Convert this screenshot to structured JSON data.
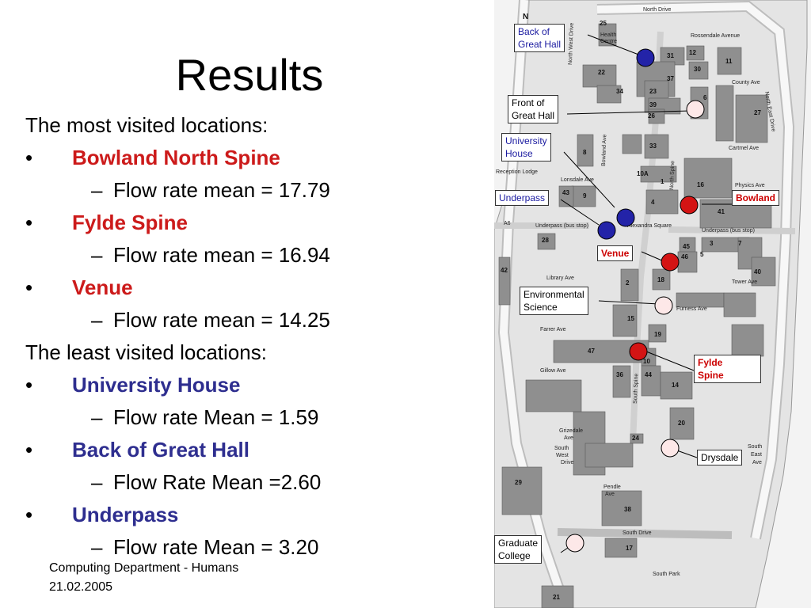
{
  "slide": {
    "title": "Results",
    "most_heading": "The most visited locations:",
    "least_heading": "The least visited locations:",
    "bullet": "•",
    "dash": "–",
    "most": [
      {
        "name": "Bowland North Spine",
        "stat": "Flow rate mean = 17.79"
      },
      {
        "name": "Fylde Spine",
        "stat": "Flow rate mean = 16.94"
      },
      {
        "name": "Venue",
        "stat": "Flow rate mean = 14.25"
      }
    ],
    "least": [
      {
        "name": "University House",
        "stat": "Flow rate Mean = 1.59"
      },
      {
        "name": "Back of Great Hall",
        "stat": "Flow Rate Mean =2.60"
      },
      {
        "name": "Underpass",
        "stat": "Flow rate Mean = 3.20"
      }
    ],
    "footer_line1": "Computing Department - Humans",
    "footer_line2": "21.02.2005"
  },
  "colors": {
    "most_text": "#cc1a1a",
    "least_text": "#2e2e8f",
    "marker_high": "#d41414",
    "marker_low": "#2323a8",
    "marker_other": "#fde8e8"
  },
  "map": {
    "north": "N",
    "callouts": {
      "back_great_hall_1": "Back of",
      "back_great_hall_2": "Great Hall",
      "front_great_hall_1": "Front of",
      "front_great_hall_2": "Great Hall",
      "university_house_1": "University",
      "university_house_2": "House",
      "underpass": "Underpass",
      "bowland": "Bowland",
      "venue": "Venue",
      "env_science_1": "Environmental",
      "env_science_2": "Science",
      "fylde_1": "Fylde",
      "fylde_2": "Spine",
      "drysdale": "Drysdale",
      "graduate_1": "Graduate",
      "graduate_2": "College"
    },
    "streets": {
      "north_drive": "North Drive",
      "rossendale": "Rossendale Avenue",
      "county": "County Ave",
      "north_east": "North East Drive",
      "north_west": "North West Drive",
      "cartmel": "Cartmel Ave",
      "physics": "Physics Ave",
      "reception": "Reception Lodge",
      "lonsdale": "Lonsdale Ave",
      "bowland_ave": "Bowland Ave",
      "north_spine": "North Spine",
      "alexandra": "Alexandra Square",
      "underpass_left": "Underpass (bus stop)",
      "underpass_right": "Underpass (bus stop)",
      "a6": "A6",
      "library": "Library Ave",
      "tower": "Tower Ave",
      "furness": "Furness Ave",
      "farrer": "Farrer Ave",
      "gillow": "Gillow Ave",
      "south_spine": "South Spine",
      "grizedale": "Grizedale",
      "grizedale2": "Ave",
      "sw1": "South",
      "sw2": "West",
      "sw3": "Drive",
      "pendle": "Pendle",
      "pendle2": "Ave",
      "south_drive": "South Drive",
      "south_park": "South Park",
      "se1": "South",
      "se2": "East",
      "se3": "Ave",
      "health": "Health",
      "centre": "Centre"
    },
    "building_numbers": [
      "25",
      "31",
      "12",
      "11",
      "30",
      "22",
      "37",
      "23",
      "34",
      "6",
      "39",
      "26",
      "27",
      "8",
      "33",
      "16",
      "10A",
      "9",
      "43",
      "4",
      "41",
      "28",
      "45",
      "3",
      "7",
      "5",
      "46",
      "18",
      "42",
      "40",
      "2",
      "15",
      "19",
      "47",
      "10",
      "36",
      "44",
      "14",
      "20",
      "24",
      "29",
      "38",
      "17",
      "21",
      "1"
    ]
  }
}
